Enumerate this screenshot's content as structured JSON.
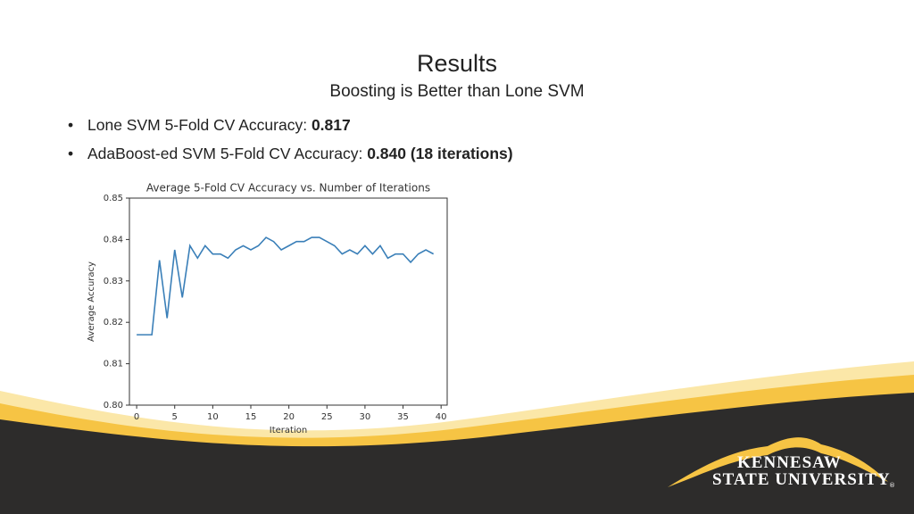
{
  "slide": {
    "title": "Results",
    "subtitle": "Boosting is  Better than Lone SVM",
    "bullets": [
      {
        "label": "Lone SVM 5-Fold CV Accuracy: ",
        "value": "0.817"
      },
      {
        "label": "AdaBoost-ed SVM 5-Fold CV Accuracy: ",
        "value": "0.840 (18 iterations)"
      }
    ],
    "logo": {
      "line1": "KENNESAW",
      "line2": "STATE UNIVERSITY",
      "mark": "®"
    }
  },
  "chart_data": {
    "type": "line",
    "title": "Average 5-Fold CV Accuracy vs. Number of Iterations",
    "x_label": "Iteration",
    "y_label": "Average Accuracy",
    "x": [
      0,
      1,
      2,
      3,
      4,
      5,
      6,
      7,
      8,
      9,
      10,
      11,
      12,
      13,
      14,
      15,
      16,
      17,
      18,
      19,
      20,
      21,
      22,
      23,
      24,
      25,
      26,
      27,
      28,
      29,
      30,
      31,
      32,
      33,
      34,
      35,
      36,
      37,
      38,
      39
    ],
    "values": [
      0.817,
      0.817,
      0.817,
      0.835,
      0.821,
      0.8375,
      0.826,
      0.8385,
      0.8355,
      0.8385,
      0.8365,
      0.8365,
      0.8355,
      0.8375,
      0.8385,
      0.8375,
      0.8385,
      0.8405,
      0.8395,
      0.8375,
      0.8385,
      0.8395,
      0.8395,
      0.8405,
      0.8405,
      0.8395,
      0.8385,
      0.8365,
      0.8375,
      0.8365,
      0.8385,
      0.8365,
      0.8385,
      0.8355,
      0.8365,
      0.8365,
      0.8345,
      0.8365,
      0.8375,
      0.8365
    ],
    "color": "#3a7fb8",
    "xlim": [
      -0.95,
      40.8
    ],
    "xticks": [
      0,
      5,
      10,
      15,
      20,
      25,
      30,
      35,
      40
    ],
    "ylim": [
      0.8,
      0.85
    ],
    "yticks": [
      {
        "value": 0.8,
        "label": "0.80"
      },
      0.81,
      0.82,
      0.83,
      0.84,
      0.85
    ],
    "grid": false
  }
}
